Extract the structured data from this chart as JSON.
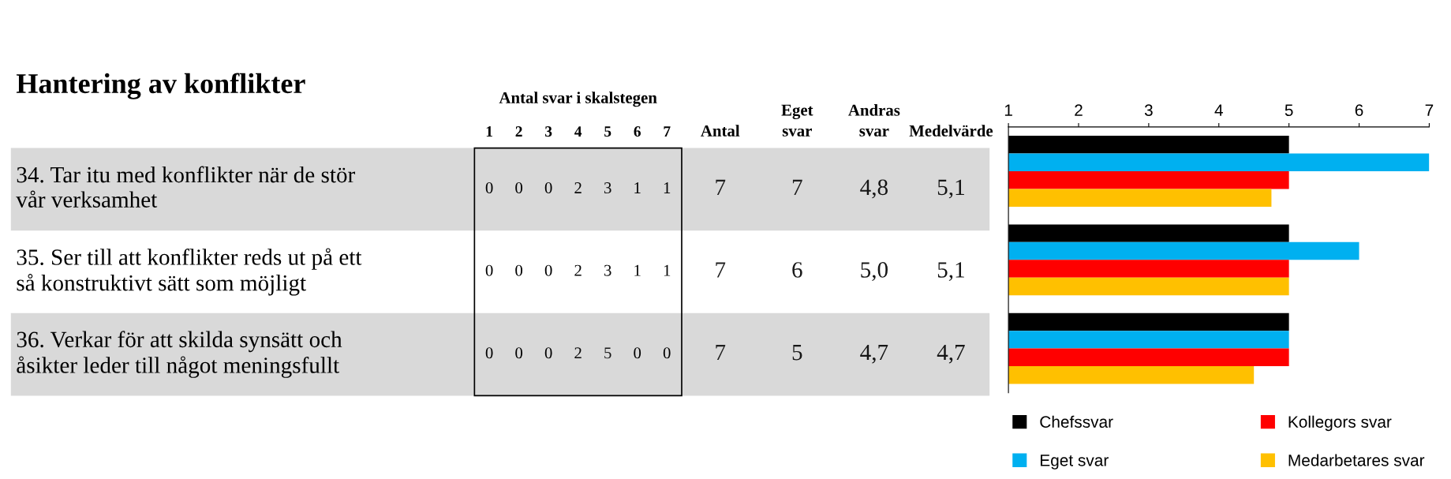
{
  "chart_data": [
    {
      "type": "heatmap",
      "title": "Hantering av konflikter",
      "annotations": [
        "Antal svar i skalstegen"
      ],
      "categories": [
        "1",
        "2",
        "3",
        "4",
        "5",
        "6",
        "7",
        "Antal",
        "Eget\nsvar",
        "Andras\nsvar",
        "Medelvärde"
      ],
      "y_categories": [
        "34. Tar itu med konflikter när de stör\nvår verksamhet",
        "35. Ser till att konflikter reds ut på ett\nså konstruktivt sätt som möjligt",
        "36. Verkar för att skilda synsätt och\nåsikter leder till något meningsfullt"
      ],
      "cells": [
        [
          0,
          0,
          0,
          2,
          3,
          1,
          1,
          7,
          7,
          4.8,
          5.1
        ],
        [
          0,
          0,
          0,
          2,
          3,
          1,
          1,
          7,
          6,
          5.0,
          5.1
        ],
        [
          0,
          0,
          0,
          2,
          5,
          0,
          0,
          7,
          5,
          4.7,
          4.7
        ]
      ],
      "cell_labels": [
        [
          "0",
          "0",
          "0",
          "2",
          "3",
          "1",
          "1",
          "7",
          "7",
          "4,8",
          "5,1"
        ],
        [
          "0",
          "0",
          "0",
          "2",
          "3",
          "1",
          "1",
          "7",
          "6",
          "5,0",
          "5,1"
        ],
        [
          "0",
          "0",
          "0",
          "2",
          "5",
          "0",
          "0",
          "7",
          "5",
          "4,7",
          "4,7"
        ]
      ]
    },
    {
      "type": "bar",
      "orientation": "horizontal",
      "categories": [
        null,
        null,
        null
      ],
      "xlim": [
        1,
        7
      ],
      "xticks": [
        1,
        2,
        3,
        4,
        5,
        6,
        7
      ],
      "legend": "bottom",
      "series": [
        {
          "name": "Chefssvar",
          "color": "#000000",
          "values": [
            5,
            5,
            5
          ]
        },
        {
          "name": "Eget svar",
          "color": "#00b0f0",
          "values": [
            7,
            6,
            5
          ]
        },
        {
          "name": "Kollegors svar",
          "color": "#ff0000",
          "values": [
            5,
            5,
            5
          ]
        },
        {
          "name": "Medarbetares svar",
          "color": "#ffc000",
          "values": [
            4.75,
            5,
            4.5
          ]
        }
      ]
    }
  ]
}
